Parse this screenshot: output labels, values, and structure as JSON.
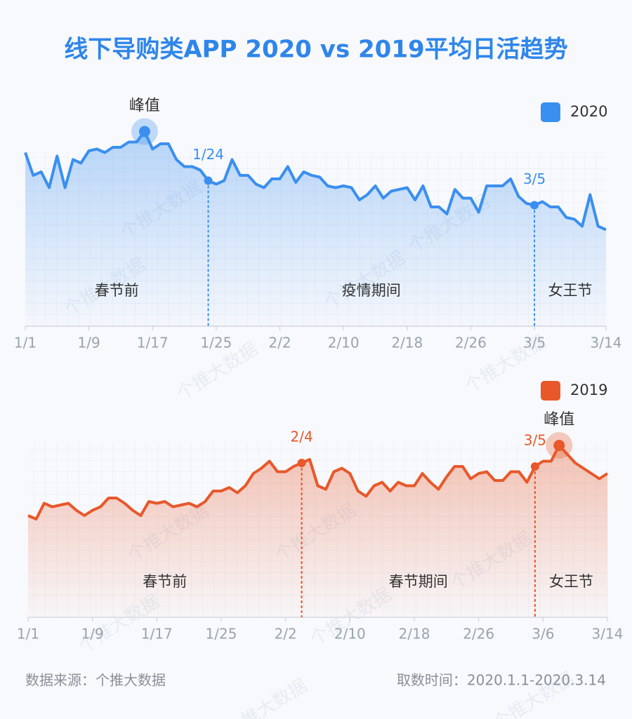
{
  "title": "线下导购类APP 2020 vs 2019平均日活趋势",
  "watermark": "个推大数据",
  "footer": {
    "source": "数据来源：个推大数据",
    "time": "取数时间：2020.1.1-2020.3.14"
  },
  "chart_data": [
    {
      "type": "line",
      "categories": [
        "1/1",
        null,
        null,
        null,
        null,
        null,
        null,
        null,
        "1/9",
        null,
        null,
        null,
        null,
        null,
        null,
        null,
        "1/17",
        null,
        null,
        null,
        null,
        null,
        null,
        null,
        "1/25",
        null,
        null,
        null,
        null,
        null,
        null,
        null,
        "2/2",
        null,
        null,
        null,
        null,
        null,
        null,
        null,
        "2/10",
        null,
        null,
        null,
        null,
        null,
        null,
        null,
        "2/18",
        null,
        null,
        null,
        null,
        null,
        null,
        null,
        "2/26",
        null,
        null,
        null,
        null,
        null,
        null,
        null,
        "3/5",
        null,
        null,
        null,
        null,
        null,
        null,
        null,
        null,
        "3/14"
      ],
      "series": [
        {
          "name": "2020",
          "color": "#3a8ff0",
          "values": [
            99,
            86,
            88,
            79,
            97,
            79,
            95,
            93,
            100,
            101,
            99,
            102,
            102,
            105,
            105,
            111,
            101,
            104,
            104,
            95,
            91,
            91,
            89,
            83,
            81,
            83,
            95,
            86,
            86,
            81,
            79,
            84,
            84,
            91,
            82,
            88,
            86,
            85,
            80,
            79,
            80,
            79,
            72,
            75,
            80,
            73,
            77,
            78,
            79,
            72,
            80,
            68,
            68,
            64,
            78,
            73,
            73,
            65,
            80,
            80,
            80,
            84,
            74,
            70,
            69,
            71,
            68,
            68,
            62,
            61,
            57,
            75,
            57,
            55
          ]
        }
      ],
      "ylim": [
        0,
        120
      ],
      "grid": true,
      "markers": [
        {
          "label": "1/24",
          "index": 23
        },
        {
          "label": "3/5",
          "index": 64
        }
      ],
      "peak": {
        "label": "峰值",
        "index": 15
      },
      "periods": [
        "春节前",
        "疫情期间",
        "女王节"
      ]
    },
    {
      "type": "line",
      "categories": [
        "1/1",
        null,
        null,
        null,
        null,
        null,
        null,
        null,
        "1/9",
        null,
        null,
        null,
        null,
        null,
        null,
        null,
        "1/17",
        null,
        null,
        null,
        null,
        null,
        null,
        null,
        "1/25",
        null,
        null,
        null,
        null,
        null,
        null,
        null,
        "2/2",
        null,
        null,
        null,
        null,
        null,
        null,
        null,
        "2/10",
        null,
        null,
        null,
        null,
        null,
        null,
        null,
        "2/18",
        null,
        null,
        null,
        null,
        null,
        null,
        null,
        "2/26",
        null,
        null,
        null,
        null,
        null,
        null,
        null,
        "3/6",
        null,
        null,
        null,
        null,
        null,
        null,
        null,
        "3/14"
      ],
      "series": [
        {
          "name": "2019",
          "color": "#e8582a",
          "values": [
            58,
            56,
            65,
            63,
            64,
            65,
            61,
            58,
            61,
            63,
            68,
            68,
            65,
            61,
            58,
            66,
            65,
            66,
            63,
            64,
            65,
            63,
            66,
            72,
            72,
            74,
            71,
            75,
            82,
            85,
            89,
            83,
            83,
            86,
            88,
            90,
            75,
            73,
            83,
            85,
            82,
            72,
            69,
            75,
            77,
            72,
            77,
            75,
            75,
            82,
            77,
            73,
            80,
            86,
            86,
            79,
            82,
            83,
            78,
            78,
            83,
            83,
            77,
            86,
            89,
            89,
            98,
            93,
            88,
            85,
            82,
            79,
            82
          ]
        }
      ],
      "ylim": [
        0,
        120
      ],
      "grid": true,
      "markers": [
        {
          "label": "2/4",
          "index": 34
        },
        {
          "label": "3/5",
          "index": 63
        }
      ],
      "peak": {
        "label": "峰值",
        "index": 66
      },
      "periods": [
        "春节前",
        "春节期间",
        "女王节"
      ]
    }
  ]
}
